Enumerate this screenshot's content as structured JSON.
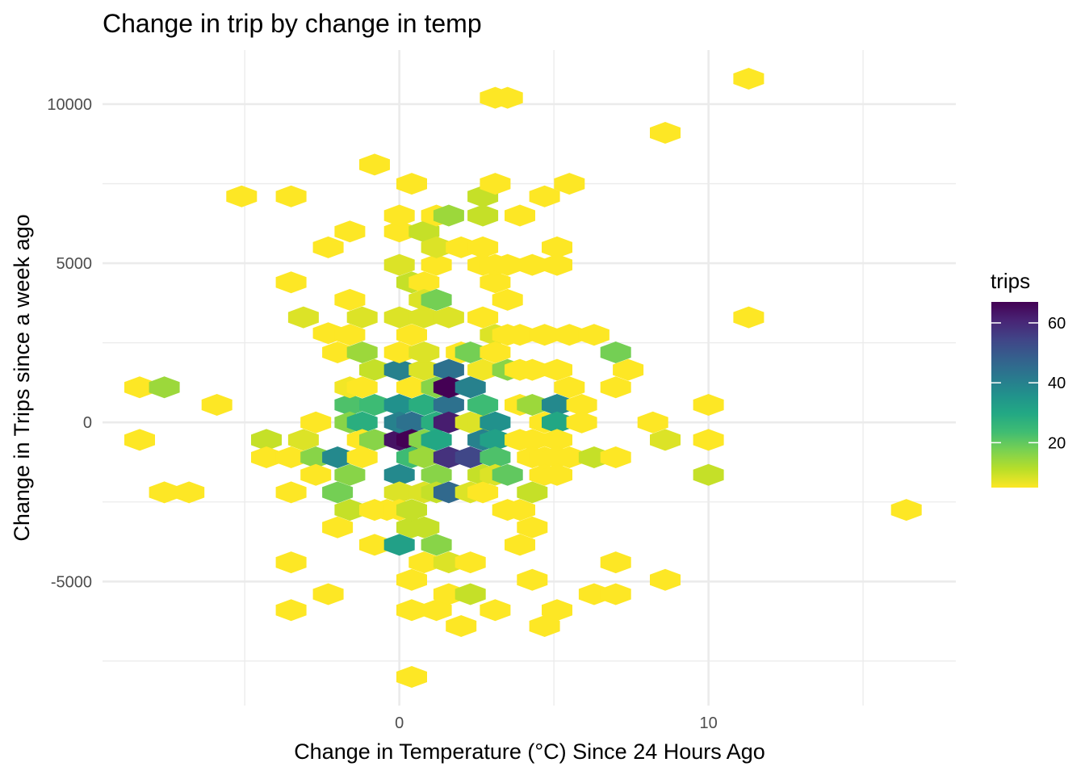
{
  "chart_data": {
    "type": "heatmap",
    "title": "Change in trip by change in temp",
    "xlabel": "Change in  Temperature (°C) Since 24 Hours Ago",
    "ylabel": "Change in Trips since a week ago",
    "xlim": [
      -9.6,
      18
    ],
    "ylim": [
      -8900,
      11700
    ],
    "x_ticks": [
      0,
      10
    ],
    "x_tick_labels": [
      "0",
      "10"
    ],
    "y_ticks": [
      -5000,
      0,
      5000,
      10000
    ],
    "y_tick_labels": [
      "-5000",
      "0",
      "5000",
      "10000"
    ],
    "grid": true,
    "legend": {
      "title": "trips",
      "position": "right",
      "min": 5,
      "max": 67,
      "ticks": [
        20,
        40,
        60
      ],
      "tick_labels": [
        "20",
        "40",
        "60"
      ]
    },
    "colors": [
      "#fde725",
      "#b8de29",
      "#7ad151",
      "#3fbc73",
      "#22a884",
      "#21918c",
      "#2a788e",
      "#355f8d",
      "#414487",
      "#482475",
      "#440154"
    ],
    "bins_columns": [
      "x",
      "y",
      "trips"
    ],
    "bins": [
      [
        -8.4,
        -550,
        2
      ],
      [
        -8.4,
        1100,
        2
      ],
      [
        -7.6,
        -2200,
        2
      ],
      [
        -7.6,
        1100,
        14
      ],
      [
        -6.8,
        -2200,
        2
      ],
      [
        -5.9,
        550,
        2
      ],
      [
        -5.1,
        7100,
        2
      ],
      [
        -4.3,
        -550,
        10
      ],
      [
        -4.3,
        -1100,
        2
      ],
      [
        -3.5,
        -2200,
        2
      ],
      [
        -3.5,
        -1100,
        2
      ],
      [
        -3.5,
        -4400,
        2
      ],
      [
        -3.5,
        4400,
        2
      ],
      [
        -3.5,
        7100,
        2
      ],
      [
        -3.5,
        -5900,
        2
      ],
      [
        -3.1,
        -550,
        8
      ],
      [
        -3.1,
        3300,
        8
      ],
      [
        -2.7,
        -1100,
        16
      ],
      [
        -2.7,
        0,
        2
      ],
      [
        -2.7,
        -1650,
        2
      ],
      [
        -2.3,
        2800,
        2
      ],
      [
        -2.3,
        -5400,
        2
      ],
      [
        -2.3,
        5500,
        2
      ],
      [
        -2,
        -1100,
        38
      ],
      [
        -2,
        2200,
        2
      ],
      [
        -2,
        -3300,
        2
      ],
      [
        -2,
        -2200,
        18
      ],
      [
        -1.6,
        550,
        22
      ],
      [
        -1.6,
        0,
        16
      ],
      [
        -1.6,
        1100,
        6
      ],
      [
        -1.6,
        -1650,
        16
      ],
      [
        -1.6,
        -2750,
        10
      ],
      [
        -1.6,
        2750,
        2
      ],
      [
        -1.6,
        3850,
        2
      ],
      [
        -1.6,
        6000,
        2
      ],
      [
        -1.2,
        0,
        28
      ],
      [
        -1.2,
        -550,
        2
      ],
      [
        -1.2,
        -1100,
        2
      ],
      [
        -1.2,
        1100,
        2
      ],
      [
        -1.2,
        2200,
        14
      ],
      [
        -1.2,
        3300,
        8
      ],
      [
        -0.8,
        550,
        24
      ],
      [
        -0.8,
        -550,
        16
      ],
      [
        -0.8,
        1650,
        10
      ],
      [
        -0.8,
        -2750,
        2
      ],
      [
        -0.8,
        -3850,
        2
      ],
      [
        -0.8,
        8100,
        2
      ],
      [
        -0.4,
        -2750,
        2
      ],
      [
        0,
        550,
        36
      ],
      [
        0,
        1650,
        40
      ],
      [
        0,
        -550,
        64
      ],
      [
        0,
        -1650,
        38
      ],
      [
        0,
        -3850,
        32
      ],
      [
        0,
        0,
        40
      ],
      [
        0,
        4950,
        8
      ],
      [
        0,
        3300,
        8
      ],
      [
        0,
        2200,
        2
      ],
      [
        0,
        6000,
        2
      ],
      [
        0,
        6500,
        2
      ],
      [
        0,
        -2200,
        8
      ],
      [
        0,
        -2750,
        2
      ],
      [
        0.4,
        0,
        44
      ],
      [
        0.4,
        -550,
        68
      ],
      [
        0.4,
        -1100,
        24
      ],
      [
        0.4,
        1100,
        2
      ],
      [
        0.4,
        4400,
        10
      ],
      [
        0.4,
        7500,
        2
      ],
      [
        0.4,
        -3300,
        10
      ],
      [
        0.4,
        -2750,
        10
      ],
      [
        0.4,
        2750,
        2
      ],
      [
        0.4,
        -8000,
        2
      ],
      [
        0.4,
        -4950,
        2
      ],
      [
        0.4,
        -5900,
        2
      ],
      [
        0.8,
        550,
        28
      ],
      [
        0.8,
        -550,
        16
      ],
      [
        0.8,
        -1100,
        14
      ],
      [
        0.8,
        1650,
        8
      ],
      [
        0.8,
        3300,
        8
      ],
      [
        0.8,
        6000,
        10
      ],
      [
        0.8,
        -2200,
        8
      ],
      [
        0.8,
        -4400,
        2
      ],
      [
        0.8,
        -3300,
        10
      ],
      [
        0.8,
        2200,
        8
      ],
      [
        0.8,
        4400,
        2
      ],
      [
        0.8,
        3850,
        8
      ],
      [
        1.2,
        0,
        28
      ],
      [
        1.2,
        -550,
        30
      ],
      [
        1.2,
        1100,
        16
      ],
      [
        1.2,
        -1650,
        16
      ],
      [
        1.2,
        3850,
        18
      ],
      [
        1.2,
        6500,
        2
      ],
      [
        1.2,
        -3850,
        16
      ],
      [
        1.2,
        -5900,
        2
      ],
      [
        1.2,
        -2200,
        10
      ],
      [
        1.2,
        4950,
        2
      ],
      [
        1.2,
        5500,
        8
      ],
      [
        1.6,
        550,
        44
      ],
      [
        1.6,
        1650,
        44
      ],
      [
        1.6,
        1100,
        68
      ],
      [
        1.6,
        -1100,
        58
      ],
      [
        1.6,
        0,
        62
      ],
      [
        1.6,
        -2200,
        46
      ],
      [
        1.6,
        3300,
        8
      ],
      [
        1.6,
        6500,
        14
      ],
      [
        1.6,
        -4400,
        8
      ],
      [
        1.6,
        -5400,
        2
      ],
      [
        2,
        2200,
        2
      ],
      [
        2,
        5500,
        2
      ],
      [
        2,
        -6400,
        2
      ],
      [
        2.3,
        0,
        8
      ],
      [
        2.3,
        -1100,
        54
      ],
      [
        2.3,
        1100,
        40
      ],
      [
        2.3,
        2200,
        18
      ],
      [
        2.3,
        -2200,
        8
      ],
      [
        2.3,
        -5400,
        10
      ],
      [
        2.3,
        -4400,
        2
      ],
      [
        2.7,
        0,
        8
      ],
      [
        2.7,
        -550,
        40
      ],
      [
        2.7,
        550,
        24
      ],
      [
        2.7,
        1650,
        6
      ],
      [
        2.7,
        3300,
        2
      ],
      [
        2.7,
        -1650,
        10
      ],
      [
        2.7,
        -2200,
        2
      ],
      [
        2.7,
        7100,
        10
      ],
      [
        2.7,
        6500,
        10
      ],
      [
        2.7,
        5500,
        2
      ],
      [
        2.7,
        4950,
        2
      ],
      [
        3.1,
        0,
        36
      ],
      [
        3.1,
        -550,
        32
      ],
      [
        3.1,
        -1100,
        22
      ],
      [
        3.1,
        2750,
        8
      ],
      [
        3.1,
        -1650,
        8
      ],
      [
        3.1,
        -5900,
        2
      ],
      [
        3.1,
        10200,
        2
      ],
      [
        3.1,
        4400,
        2
      ],
      [
        3.1,
        2200,
        2
      ],
      [
        3.1,
        4950,
        2
      ],
      [
        3.1,
        7500,
        2
      ],
      [
        3.5,
        -1650,
        20
      ],
      [
        3.5,
        1650,
        16
      ],
      [
        3.5,
        2750,
        2
      ],
      [
        3.5,
        -2750,
        2
      ],
      [
        3.5,
        3850,
        2
      ],
      [
        3.5,
        4950,
        2
      ],
      [
        3.5,
        10200,
        2
      ],
      [
        3.9,
        550,
        2
      ],
      [
        3.9,
        -550,
        2
      ],
      [
        3.9,
        1650,
        2
      ],
      [
        3.9,
        -2750,
        2
      ],
      [
        3.9,
        -3850,
        2
      ],
      [
        3.9,
        2750,
        2
      ],
      [
        3.9,
        6500,
        2
      ],
      [
        4.3,
        550,
        14
      ],
      [
        4.3,
        -550,
        2
      ],
      [
        4.3,
        -1100,
        2
      ],
      [
        4.3,
        1650,
        2
      ],
      [
        4.3,
        -2200,
        10
      ],
      [
        4.3,
        -3300,
        2
      ],
      [
        4.3,
        -4950,
        2
      ],
      [
        4.3,
        4950,
        2
      ],
      [
        4.7,
        0,
        2
      ],
      [
        4.7,
        -1100,
        2
      ],
      [
        4.7,
        -1650,
        2
      ],
      [
        4.7,
        2750,
        2
      ],
      [
        4.7,
        -6400,
        2
      ],
      [
        4.7,
        7100,
        2
      ],
      [
        5.1,
        550,
        38
      ],
      [
        5.1,
        0,
        30
      ],
      [
        5.1,
        -550,
        2
      ],
      [
        5.1,
        1650,
        2
      ],
      [
        5.1,
        -1100,
        2
      ],
      [
        5.1,
        -1650,
        2
      ],
      [
        5.1,
        -5900,
        2
      ],
      [
        5.1,
        5500,
        2
      ],
      [
        5.1,
        4950,
        2
      ],
      [
        5.5,
        1100,
        2
      ],
      [
        5.5,
        2750,
        2
      ],
      [
        5.5,
        -1100,
        2
      ],
      [
        5.5,
        7500,
        2
      ],
      [
        5.9,
        550,
        2
      ],
      [
        5.9,
        0,
        2
      ],
      [
        6.3,
        -1100,
        10
      ],
      [
        6.3,
        2750,
        2
      ],
      [
        6.3,
        -5400,
        2
      ],
      [
        7,
        -1100,
        2
      ],
      [
        7,
        2200,
        18
      ],
      [
        7,
        1100,
        2
      ],
      [
        7,
        -5400,
        2
      ],
      [
        7,
        -4400,
        2
      ],
      [
        7.4,
        1650,
        2
      ],
      [
        8.2,
        0,
        2
      ],
      [
        8.6,
        -550,
        8
      ],
      [
        8.6,
        -4950,
        2
      ],
      [
        8.6,
        9100,
        2
      ],
      [
        10,
        550,
        2
      ],
      [
        10,
        -550,
        2
      ],
      [
        10,
        -1650,
        10
      ],
      [
        11.3,
        3300,
        2
      ],
      [
        11.3,
        10800,
        2
      ],
      [
        16.4,
        -2750,
        2
      ]
    ]
  }
}
